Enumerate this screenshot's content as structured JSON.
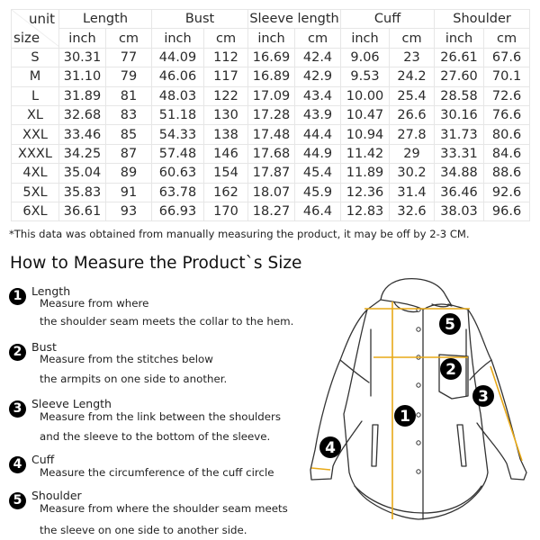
{
  "table": {
    "unit_label": "unit",
    "size_label": "size",
    "groups": [
      "Length",
      "Bust",
      "Sleeve length",
      "Cuff",
      "Shoulder"
    ],
    "sub_headers": [
      "inch",
      "cm"
    ],
    "rows": [
      [
        "S",
        "30.31",
        "77",
        "44.09",
        "112",
        "16.69",
        "42.4",
        "9.06",
        "23",
        "26.61",
        "67.6"
      ],
      [
        "M",
        "31.10",
        "79",
        "46.06",
        "117",
        "16.89",
        "42.9",
        "9.53",
        "24.2",
        "27.60",
        "70.1"
      ],
      [
        "L",
        "31.89",
        "81",
        "48.03",
        "122",
        "17.09",
        "43.4",
        "10.00",
        "25.4",
        "28.58",
        "72.6"
      ],
      [
        "XL",
        "32.68",
        "83",
        "51.18",
        "130",
        "17.28",
        "43.9",
        "10.47",
        "26.6",
        "30.16",
        "76.6"
      ],
      [
        "XXL",
        "33.46",
        "85",
        "54.33",
        "138",
        "17.48",
        "44.4",
        "10.94",
        "27.8",
        "31.73",
        "80.6"
      ],
      [
        "XXXL",
        "34.25",
        "87",
        "57.48",
        "146",
        "17.68",
        "44.9",
        "11.42",
        "29",
        "33.31",
        "84.6"
      ],
      [
        "4XL",
        "35.04",
        "89",
        "60.63",
        "154",
        "17.87",
        "45.4",
        "11.89",
        "30.2",
        "34.88",
        "88.6"
      ],
      [
        "5XL",
        "35.83",
        "91",
        "63.78",
        "162",
        "18.07",
        "45.9",
        "12.36",
        "31.4",
        "36.46",
        "92.6"
      ],
      [
        "6XL",
        "36.61",
        "93",
        "66.93",
        "170",
        "18.27",
        "46.4",
        "12.83",
        "32.6",
        "38.03",
        "96.6"
      ]
    ]
  },
  "note": "*This data was obtained from manually measuring the product, it may be off by 2-3 CM.",
  "heading": "How to Measure the Product`s Size",
  "items": [
    {
      "num": "1",
      "name": "Length",
      "lines": [
        "Measure from where",
        "the shoulder seam meets the collar to the hem."
      ]
    },
    {
      "num": "2",
      "name": "Bust",
      "lines": [
        "Measure from the stitches below",
        "the armpits on one side to another."
      ]
    },
    {
      "num": "3",
      "name": "Sleeve Length",
      "lines": [
        "Measure from the link between the shoulders",
        "and the sleeve to the bottom of the sleeve."
      ]
    },
    {
      "num": "4",
      "name": "Cuff",
      "lines": [
        "Measure the circumference of the cuff circle"
      ]
    },
    {
      "num": "5",
      "name": "Shoulder",
      "lines": [
        "Measure from where the shoulder seam meets",
        "the sleeve on one side to another side."
      ]
    }
  ],
  "diagram_markers": [
    "1",
    "2",
    "3",
    "4",
    "5"
  ],
  "colors": {
    "measure_line": "#e8a917",
    "marker": "#000000"
  }
}
